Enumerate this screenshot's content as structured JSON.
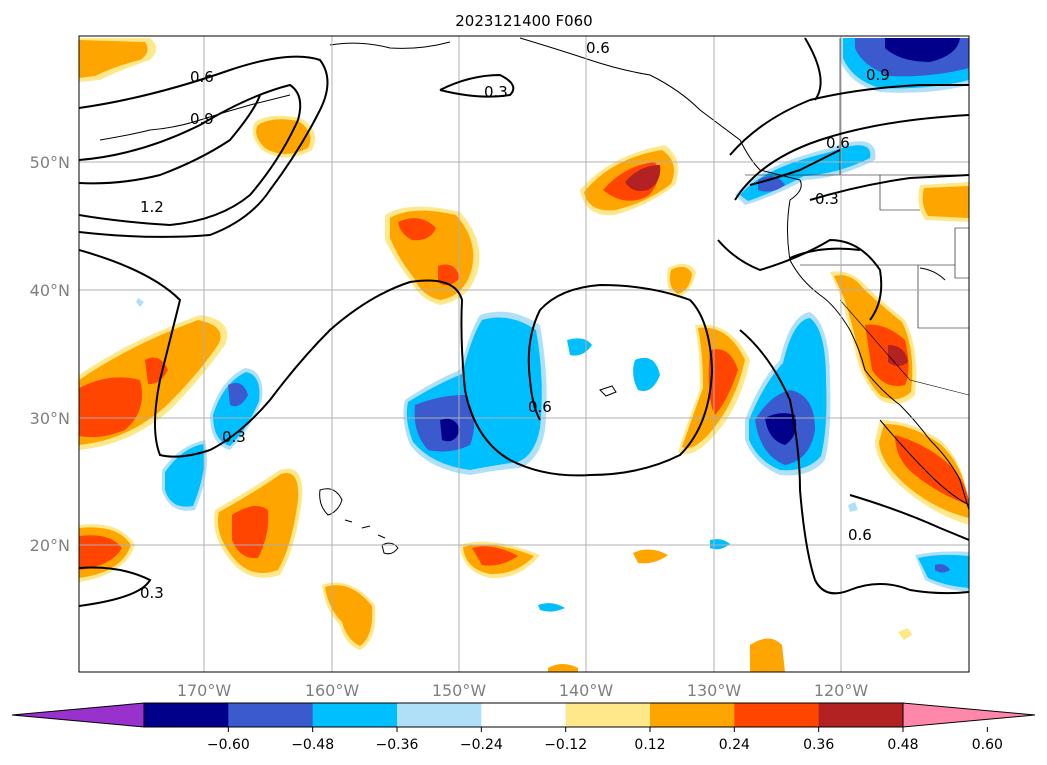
{
  "title": "2023121400 F060",
  "map": {
    "lat_labels": [
      "50°N",
      "40°N",
      "30°N",
      "20°N"
    ],
    "lon_labels": [
      "170°W",
      "160°W",
      "150°W",
      "140°W",
      "130°W",
      "120°W"
    ],
    "gridlines": true,
    "contour_labels": [
      "0.6",
      "0.9",
      "1.2",
      "0.3",
      "0.3",
      "0.6",
      "0.3",
      "0.6",
      "0.6",
      "0.3",
      "0.6",
      "0.9"
    ]
  },
  "colorbar": {
    "ticks": [
      "−0.60",
      "−0.48",
      "−0.36",
      "−0.24",
      "−0.12",
      "0.12",
      "0.24",
      "0.36",
      "0.48",
      "0.60"
    ],
    "colors": [
      "#9932cc",
      "#00008b",
      "#3a5acd",
      "#00bfff",
      "#b0e0f8",
      "#ffffff",
      "#ffe88a",
      "#ffa500",
      "#ff4500",
      "#b22222",
      "#ff88aa"
    ],
    "extend": "both"
  },
  "colors": {
    "contour": "#000000",
    "grid": "#b0b0b0",
    "coast": "#000000"
  }
}
